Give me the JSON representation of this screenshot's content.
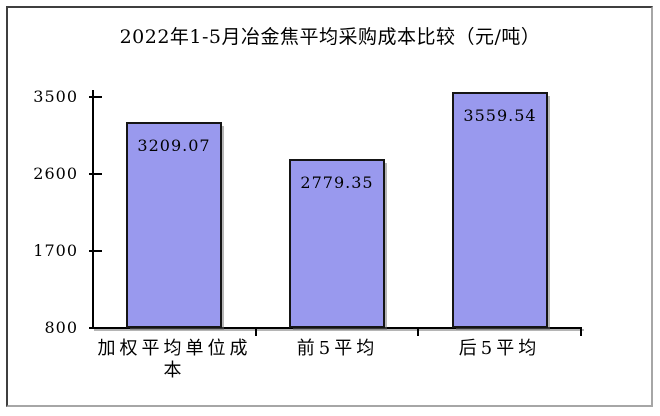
{
  "window": {
    "background": "#ffffff",
    "frame_border_dark": "#3f3f3f",
    "frame_border_light": "#a6a6a6"
  },
  "chart_data": {
    "type": "bar",
    "title": "2022年1-5月冶金焦平均采购成本比较（元/吨）",
    "categories": [
      "加权平均单位成本",
      "前5平均",
      "后5平均"
    ],
    "values": [
      3209.07,
      2779.35,
      3559.54
    ],
    "value_labels": [
      "3209.07",
      "2779.35",
      "3559.54"
    ],
    "ylabel": "",
    "xlabel": "",
    "yticks": [
      "800",
      "1700",
      "2600",
      "3500"
    ],
    "ytick_values": [
      800,
      1700,
      2600,
      3500
    ],
    "ylim": [
      800,
      3580
    ],
    "grid": false,
    "legend_position": "none",
    "bar_color": "#9999EE",
    "bar_border_color": "#151515",
    "axis_color": "#000000",
    "text_color": "#000000"
  }
}
